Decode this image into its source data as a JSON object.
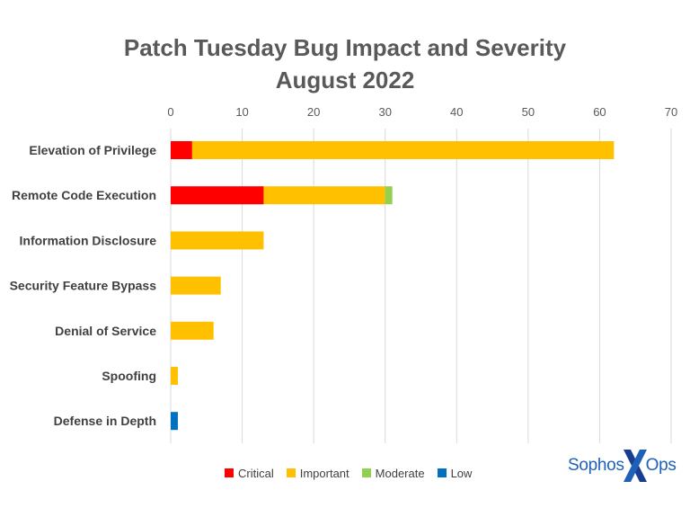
{
  "title_line1": "Patch Tuesday Bug Impact and Severity",
  "title_line2": "August 2022",
  "logo": {
    "left": "Sophos",
    "right": "Ops"
  },
  "chart_data": {
    "type": "bar",
    "orientation": "horizontal",
    "stacked": true,
    "title": "Patch Tuesday Bug Impact and Severity August 2022",
    "xlabel": "",
    "ylabel": "",
    "xlim": [
      0,
      70
    ],
    "xticks": [
      0,
      10,
      20,
      30,
      40,
      50,
      60,
      70
    ],
    "grid": true,
    "legend_position": "bottom",
    "categories": [
      "Elevation of Privilege",
      "Remote Code Execution",
      "Information Disclosure",
      "Security Feature Bypass",
      "Denial of Service",
      "Spoofing",
      "Defense in Depth"
    ],
    "series": [
      {
        "name": "Critical",
        "color": "#ff0000",
        "values": [
          3,
          13,
          0,
          0,
          0,
          0,
          0
        ]
      },
      {
        "name": "Important",
        "color": "#ffc000",
        "values": [
          59,
          17,
          13,
          7,
          6,
          1,
          0
        ]
      },
      {
        "name": "Moderate",
        "color": "#92d050",
        "values": [
          0,
          1,
          0,
          0,
          0,
          0,
          0
        ]
      },
      {
        "name": "Low",
        "color": "#0070c0",
        "values": [
          0,
          0,
          0,
          0,
          0,
          0,
          1
        ]
      }
    ]
  }
}
